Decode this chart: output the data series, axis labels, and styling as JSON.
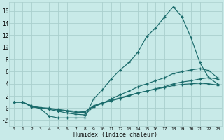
{
  "xlabel": "Humidex (Indice chaleur)",
  "background_color": "#c8eae8",
  "grid_color": "#aacfcd",
  "line_color": "#1a6b6b",
  "xlim": [
    -0.5,
    23.5
  ],
  "ylim": [
    -3.0,
    17.5
  ],
  "x_ticks": [
    0,
    1,
    2,
    3,
    4,
    5,
    6,
    7,
    8,
    9,
    10,
    11,
    12,
    13,
    14,
    15,
    16,
    17,
    18,
    19,
    20,
    21,
    22,
    23
  ],
  "y_ticks": [
    -2,
    0,
    2,
    4,
    6,
    8,
    10,
    12,
    14,
    16
  ],
  "line1_x": [
    0,
    1,
    2,
    3,
    4,
    5,
    6,
    7,
    8,
    9,
    10,
    11,
    12,
    13,
    14,
    15,
    16,
    17,
    18,
    19,
    20,
    21,
    22,
    23
  ],
  "line1_y": [
    1.0,
    1.0,
    0.4,
    -0.1,
    -1.3,
    -1.6,
    -1.6,
    -1.6,
    -1.6,
    1.5,
    3.0,
    4.8,
    6.3,
    7.5,
    9.2,
    11.8,
    13.2,
    15.0,
    16.7,
    15.0,
    11.6,
    7.5,
    5.0,
    4.0
  ],
  "line2_x": [
    0,
    1,
    2,
    3,
    4,
    5,
    6,
    7,
    8,
    9,
    10,
    11,
    12,
    13,
    14,
    15,
    16,
    17,
    18,
    19,
    20,
    21,
    22,
    23
  ],
  "line2_y": [
    1.0,
    1.0,
    0.3,
    0.1,
    -0.2,
    -0.5,
    -0.8,
    -1.0,
    -1.1,
    0.2,
    0.8,
    1.5,
    2.2,
    2.8,
    3.5,
    4.0,
    4.5,
    5.0,
    5.7,
    6.0,
    6.3,
    6.5,
    6.2,
    5.0
  ],
  "line3_x": [
    0,
    1,
    2,
    3,
    4,
    5,
    6,
    7,
    8,
    9,
    10,
    11,
    12,
    13,
    14,
    15,
    16,
    17,
    18,
    19,
    20,
    21,
    22,
    23
  ],
  "line3_y": [
    1.0,
    1.0,
    0.3,
    0.1,
    0.0,
    -0.2,
    -0.4,
    -0.5,
    -0.6,
    0.3,
    0.8,
    1.2,
    1.6,
    2.0,
    2.5,
    2.8,
    3.2,
    3.5,
    4.0,
    4.3,
    4.5,
    4.8,
    5.0,
    4.8
  ],
  "line4_x": [
    0,
    1,
    2,
    3,
    4,
    5,
    6,
    7,
    8,
    9,
    10,
    11,
    12,
    13,
    14,
    15,
    16,
    17,
    18,
    19,
    20,
    21,
    22,
    23
  ],
  "line4_y": [
    1.0,
    1.0,
    0.2,
    0.0,
    -0.1,
    -0.3,
    -0.5,
    -0.7,
    -0.7,
    0.4,
    0.9,
    1.3,
    1.7,
    2.1,
    2.5,
    2.8,
    3.1,
    3.4,
    3.7,
    3.9,
    4.0,
    4.1,
    4.0,
    3.8
  ]
}
